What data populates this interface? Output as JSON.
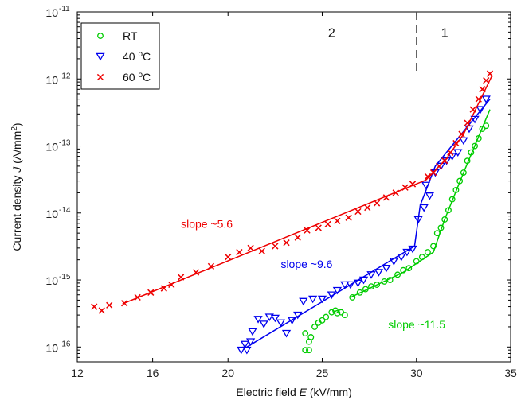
{
  "chart_data": {
    "type": "scatter",
    "title": "",
    "xlabel_prefix": "Electric field ",
    "xlabel_var": "E",
    "xlabel_suffix": " (kV/mm)",
    "ylabel_prefix": "Current density ",
    "ylabel_var": "J",
    "ylabel_suffix": " (A/mm",
    "ylabel_sup": "2",
    "ylabel_close": ")",
    "xlim": [
      12,
      35
    ],
    "ylim": [
      6e-17,
      1e-11
    ],
    "yscale": "log",
    "grid": false,
    "legend_position": "top-left",
    "x_ticks": [
      12,
      16,
      20,
      25,
      30,
      35
    ],
    "x_tick_labels": [
      "12",
      "16",
      "20",
      "25",
      "30",
      "35"
    ],
    "y_ticks": [
      1e-16,
      1e-15,
      1e-14,
      1e-13,
      1e-12,
      1e-11
    ],
    "y_tick_base": "10",
    "y_tick_exps": [
      "-16",
      "-15",
      "-14",
      "-13",
      "-12",
      "-11"
    ],
    "boundary_x": 30,
    "region_labels": [
      {
        "text": "2",
        "x": 25.5,
        "y": 5e-12
      },
      {
        "text": "1",
        "x": 31.5,
        "y": 5e-12
      }
    ],
    "series": [
      {
        "name": "RT",
        "name_sup": "",
        "name_tail": "",
        "marker": "circle",
        "color": "#00cc00",
        "points": [
          [
            24.1,
            9e-17
          ],
          [
            24.3,
            9e-17
          ],
          [
            24.3,
            1.2e-16
          ],
          [
            24.1,
            1.6e-16
          ],
          [
            24.4,
            1.4e-16
          ],
          [
            24.6,
            2e-16
          ],
          [
            24.8,
            2.3e-16
          ],
          [
            25.0,
            2.5e-16
          ],
          [
            25.2,
            2.8e-16
          ],
          [
            25.5,
            3.3e-16
          ],
          [
            25.7,
            3.5e-16
          ],
          [
            25.8,
            3.2e-16
          ],
          [
            26.0,
            3.3e-16
          ],
          [
            26.2,
            3e-16
          ],
          [
            26.6,
            5.5e-16
          ],
          [
            27.0,
            6.5e-16
          ],
          [
            27.3,
            7.3e-16
          ],
          [
            27.6,
            8e-16
          ],
          [
            27.9,
            8.5e-16
          ],
          [
            28.3,
            9.5e-16
          ],
          [
            28.6,
            1e-15
          ],
          [
            29.0,
            1.2e-15
          ],
          [
            29.3,
            1.4e-15
          ],
          [
            29.6,
            1.5e-15
          ],
          [
            30.0,
            1.9e-15
          ],
          [
            30.3,
            2.2e-15
          ],
          [
            30.6,
            2.6e-15
          ],
          [
            30.9,
            3.2e-15
          ],
          [
            31.1,
            5e-15
          ],
          [
            31.3,
            6e-15
          ],
          [
            31.5,
            8e-15
          ],
          [
            31.7,
            1.1e-14
          ],
          [
            31.9,
            1.6e-14
          ],
          [
            32.1,
            2.2e-14
          ],
          [
            32.3,
            3e-14
          ],
          [
            32.5,
            4e-14
          ],
          [
            32.7,
            6e-14
          ],
          [
            32.9,
            8e-14
          ],
          [
            33.1,
            1e-13
          ],
          [
            33.3,
            1.3e-13
          ],
          [
            33.5,
            1.8e-13
          ],
          [
            33.7,
            2e-13
          ]
        ],
        "fit": [
          [
            26.5,
            5.5e-16
          ],
          [
            29.3,
            1.3e-15
          ],
          [
            30.9,
            2.6e-15
          ],
          [
            31.5,
            8e-15
          ],
          [
            32.5,
            4e-14
          ],
          [
            33.9,
            3.5e-13
          ]
        ]
      },
      {
        "name": "40 ",
        "name_sup": "o",
        "name_tail": "C",
        "marker": "triangle-down",
        "color": "#0000ee",
        "points": [
          [
            20.7,
            9e-17
          ],
          [
            21.0,
            9e-17
          ],
          [
            20.9,
            1.1e-16
          ],
          [
            21.2,
            1.2e-16
          ],
          [
            21.3,
            1.7e-16
          ],
          [
            21.6,
            2.6e-16
          ],
          [
            21.9,
            2.2e-16
          ],
          [
            22.2,
            2.8e-16
          ],
          [
            22.5,
            2.7e-16
          ],
          [
            22.8,
            2.3e-16
          ],
          [
            23.1,
            1.6e-16
          ],
          [
            23.4,
            2.5e-16
          ],
          [
            23.7,
            3e-16
          ],
          [
            24.0,
            4.8e-16
          ],
          [
            24.5,
            5.2e-16
          ],
          [
            25.0,
            5.2e-16
          ],
          [
            25.5,
            6e-16
          ],
          [
            25.8,
            7e-16
          ],
          [
            26.2,
            8.5e-16
          ],
          [
            26.5,
            8.5e-16
          ],
          [
            26.9,
            9e-16
          ],
          [
            27.2,
            1e-15
          ],
          [
            27.6,
            1.2e-15
          ],
          [
            28.0,
            1.3e-15
          ],
          [
            28.4,
            1.5e-15
          ],
          [
            28.8,
            1.9e-15
          ],
          [
            29.2,
            2.2e-15
          ],
          [
            29.5,
            2.6e-15
          ],
          [
            29.8,
            2.9e-15
          ],
          [
            30.1,
            8e-15
          ],
          [
            30.4,
            1.2e-14
          ],
          [
            30.7,
            1.8e-14
          ],
          [
            30.5,
            2.6e-14
          ],
          [
            31.0,
            4e-14
          ],
          [
            31.3,
            5e-14
          ],
          [
            31.6,
            6e-14
          ],
          [
            31.9,
            7e-14
          ],
          [
            32.2,
            8e-14
          ],
          [
            32.5,
            1.2e-13
          ],
          [
            32.8,
            1.8e-13
          ],
          [
            33.1,
            2.5e-13
          ],
          [
            33.4,
            3.5e-13
          ],
          [
            33.7,
            5e-13
          ]
        ],
        "fit": [
          [
            21.0,
            1e-16
          ],
          [
            29.9,
            3.2e-15
          ],
          [
            30.2,
            1.3e-14
          ],
          [
            31.0,
            5e-14
          ],
          [
            33.9,
            5e-13
          ]
        ]
      },
      {
        "name": "60 ",
        "name_sup": "o",
        "name_tail": "C",
        "marker": "x",
        "color": "#ee0000",
        "points": [
          [
            12.9,
            4e-16
          ],
          [
            13.3,
            3.5e-16
          ],
          [
            13.7,
            4.2e-16
          ],
          [
            14.5,
            4.5e-16
          ],
          [
            15.2,
            5.5e-16
          ],
          [
            15.9,
            6.5e-16
          ],
          [
            16.6,
            7.5e-16
          ],
          [
            17.0,
            8.5e-16
          ],
          [
            17.5,
            1.1e-15
          ],
          [
            18.3,
            1.3e-15
          ],
          [
            19.1,
            1.6e-15
          ],
          [
            20.0,
            2.2e-15
          ],
          [
            20.6,
            2.6e-15
          ],
          [
            21.2,
            3e-15
          ],
          [
            21.8,
            2.7e-15
          ],
          [
            22.5,
            3.2e-15
          ],
          [
            23.1,
            3.6e-15
          ],
          [
            23.7,
            4.3e-15
          ],
          [
            24.2,
            5.5e-15
          ],
          [
            24.8,
            6e-15
          ],
          [
            25.3,
            6.8e-15
          ],
          [
            25.8,
            7.6e-15
          ],
          [
            26.4,
            8.5e-15
          ],
          [
            26.9,
            1.05e-14
          ],
          [
            27.4,
            1.2e-14
          ],
          [
            27.9,
            1.4e-14
          ],
          [
            28.4,
            1.7e-14
          ],
          [
            28.9,
            2e-14
          ],
          [
            29.4,
            2.4e-14
          ],
          [
            29.8,
            2.7e-14
          ],
          [
            30.6,
            3.5e-14
          ],
          [
            30.9,
            4e-14
          ],
          [
            31.2,
            5e-14
          ],
          [
            31.5,
            6e-14
          ],
          [
            31.8,
            8e-14
          ],
          [
            32.1,
            1.1e-13
          ],
          [
            32.4,
            1.5e-13
          ],
          [
            32.7,
            2.2e-13
          ],
          [
            33.0,
            3.5e-13
          ],
          [
            33.3,
            5e-13
          ],
          [
            33.5,
            7e-13
          ],
          [
            33.7,
            9.5e-13
          ],
          [
            33.9,
            1.2e-12
          ]
        ],
        "fit": [
          [
            14.4,
            4.4e-16
          ],
          [
            30.5,
            3.1e-14
          ],
          [
            31.6,
            6.5e-14
          ],
          [
            32.5,
            1.5e-13
          ],
          [
            34.0,
            1.1e-12
          ]
        ]
      }
    ],
    "annotations": [
      {
        "text": "slope ~5.6",
        "x": 17.5,
        "y": 6e-15,
        "color": "#ee0000"
      },
      {
        "text": "slope ~9.6",
        "x": 22.8,
        "y": 1.5e-15,
        "color": "#0000ee"
      },
      {
        "text": "slope ~11.5",
        "x": 28.5,
        "y": 1.9e-16,
        "color": "#00cc00"
      }
    ]
  }
}
